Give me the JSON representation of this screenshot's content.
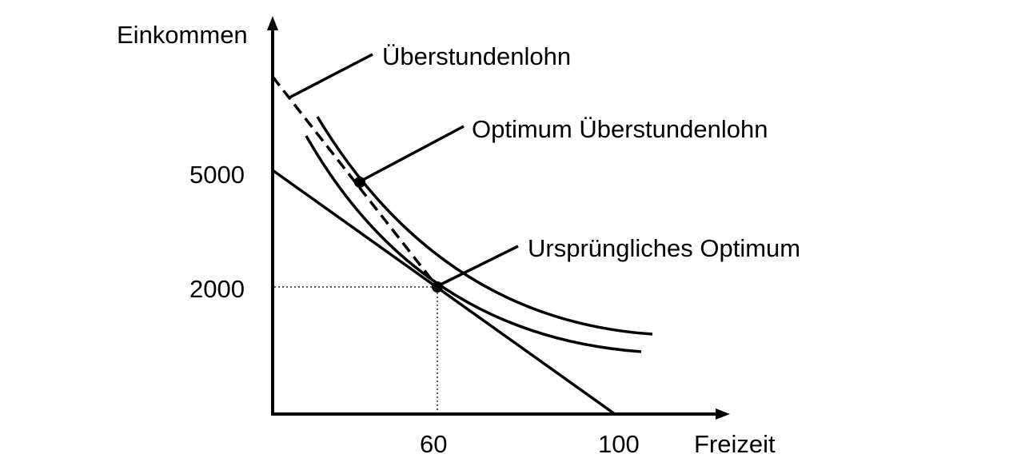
{
  "axes": {
    "y_label": "Einkommen",
    "x_label": "Freizeit",
    "y_ticks": [
      "5000",
      "2000"
    ],
    "x_ticks": [
      "60",
      "100"
    ]
  },
  "annotations": {
    "overtime_wage": "Überstundenlohn",
    "optimum_overtime": "Optimum Überstundenlohn",
    "original_optimum": "Ursprüngliches Optimum"
  },
  "colors": {
    "ink": "#000000",
    "background": "#ffffff"
  }
}
